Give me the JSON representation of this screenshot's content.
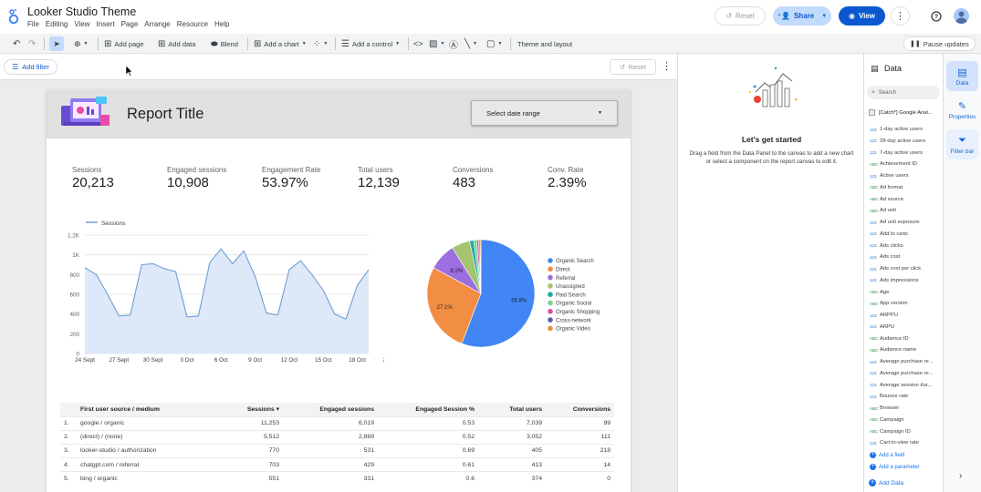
{
  "app": {
    "title": "Looker Studio Theme",
    "menu": [
      "File",
      "Editing",
      "View",
      "Insert",
      "Page",
      "Arrange",
      "Resource",
      "Help"
    ],
    "reset_label": "Reset",
    "share_label": "Share",
    "view_label": "View"
  },
  "toolbar": {
    "add_page": "Add page",
    "add_data": "Add data",
    "blend": "Blend",
    "add_chart": "Add a chart",
    "add_control": "Add a control",
    "theme_layout": "Theme and layout",
    "pause_updates": "Pause updates"
  },
  "filterbar": {
    "add_filter": "Add filter",
    "reset_label": "Reset"
  },
  "report": {
    "title": "Report Title",
    "date_range": "Select date range",
    "kpis": [
      {
        "label": "Sessions",
        "value": "20,213"
      },
      {
        "label": "Engaged sessions",
        "value": "10,908"
      },
      {
        "label": "Engagement Rate",
        "value": "53.97%"
      },
      {
        "label": "Total users",
        "value": "12,139"
      },
      {
        "label": "Conversions",
        "value": "483"
      },
      {
        "label": "Conv. Rate",
        "value": "2.39%"
      }
    ],
    "table": {
      "headers": [
        "First user source / medium",
        "Sessions ▾",
        "Engaged sessions",
        "Engaged Session %",
        "Total users",
        "Conversions"
      ],
      "rows": [
        [
          "1.",
          "google / organic",
          "11,253",
          "6,019",
          "0.53",
          "7,039",
          "99"
        ],
        [
          "2.",
          "(direct) / (none)",
          "5,512",
          "2,869",
          "0.52",
          "3,052",
          "111"
        ],
        [
          "3.",
          "looker-studio / authorization",
          "770",
          "531",
          "0.69",
          "405",
          "218"
        ],
        [
          "4.",
          "chatgpt.com / referral",
          "703",
          "429",
          "0.61",
          "413",
          "14"
        ],
        [
          "5.",
          "bing / organic",
          "551",
          "331",
          "0.6",
          "374",
          "0"
        ]
      ]
    }
  },
  "chart_data": [
    {
      "type": "area",
      "series": [
        {
          "name": "Sessions",
          "values": [
            870,
            800,
            600,
            380,
            390,
            900,
            910,
            860,
            830,
            370,
            380,
            920,
            1060,
            910,
            1040,
            780,
            410,
            390,
            850,
            940,
            800,
            640,
            400,
            350,
            690,
            850
          ]
        }
      ],
      "x": [
        "24 Sept",
        "25 Sept",
        "26 Sept",
        "27 Sept",
        "28 Sept",
        "29 Sept",
        "30 Sept",
        "1 Oct",
        "2 Oct",
        "3 Oct",
        "4 Oct",
        "5 Oct",
        "6 Oct",
        "7 Oct",
        "8 Oct",
        "9 Oct",
        "10 Oct",
        "11 Oct",
        "12 Oct",
        "13 Oct",
        "14 Oct",
        "15 Oct",
        "16 Oct",
        "17 Oct",
        "18 Oct",
        "19 Oct"
      ],
      "xticks": [
        "24 Sept",
        "27 Sept",
        "30 Sept",
        "3 Oct",
        "6 Oct",
        "9 Oct",
        "12 Oct",
        "15 Oct",
        "18 Oct",
        "21 Oct"
      ],
      "yticks": [
        "0",
        "200",
        "400",
        "600",
        "800",
        "1K",
        "1.2K"
      ],
      "ylim": [
        0,
        1200
      ],
      "legend_placement": "top-left",
      "grid": true
    },
    {
      "type": "pie",
      "slices": [
        {
          "name": "Organic Search",
          "value": 55.8,
          "label": "55.8%",
          "color": "#4285f4"
        },
        {
          "name": "Direct",
          "value": 27.1,
          "label": "27.1%",
          "color": "#f28e43"
        },
        {
          "name": "Referral",
          "value": 8.2,
          "label": "8.2%",
          "color": "#9c6ee0"
        },
        {
          "name": "Unassigned",
          "value": 5.5,
          "label": "",
          "color": "#a6c36f"
        },
        {
          "name": "Paid Search",
          "value": 1.2,
          "label": "",
          "color": "#1ba9a8"
        },
        {
          "name": "Organic Social",
          "value": 0.9,
          "label": "",
          "color": "#7cd48c"
        },
        {
          "name": "Organic Shopping",
          "value": 0.6,
          "label": "",
          "color": "#d84fa5"
        },
        {
          "name": "Cross-network",
          "value": 0.4,
          "label": "",
          "color": "#5b5ea6"
        },
        {
          "name": "Organic Video",
          "value": 0.3,
          "label": "",
          "color": "#e8903a"
        }
      ],
      "legend_placement": "right"
    }
  ],
  "get_started": {
    "title": "Let's get started",
    "text": "Drag a field from the Data Panel to the canvas to add a new chart or select a component on the report canvas to edit it."
  },
  "data_panel": {
    "title": "Data",
    "search_placeholder": "Search",
    "source": "[Catch*] Google Anal...",
    "fields": [
      {
        "type": "123",
        "name": "1-day active users"
      },
      {
        "type": "123",
        "name": "28-day active users"
      },
      {
        "type": "123",
        "name": "7-day active users"
      },
      {
        "type": "ABC",
        "name": "Achievement ID"
      },
      {
        "type": "123",
        "name": "Active users"
      },
      {
        "type": "ABC",
        "name": "Ad format"
      },
      {
        "type": "ABC",
        "name": "Ad source"
      },
      {
        "type": "ABC",
        "name": "Ad unit"
      },
      {
        "type": "123",
        "name": "Ad unit exposure"
      },
      {
        "type": "123",
        "name": "Add to carts"
      },
      {
        "type": "123",
        "name": "Ads clicks"
      },
      {
        "type": "123",
        "name": "Ads cost"
      },
      {
        "type": "123",
        "name": "Ads cost per click"
      },
      {
        "type": "123",
        "name": "Ads impressions"
      },
      {
        "type": "ABC",
        "name": "Age"
      },
      {
        "type": "ABC",
        "name": "App version"
      },
      {
        "type": "123",
        "name": "ARPPU"
      },
      {
        "type": "123",
        "name": "ARPU"
      },
      {
        "type": "ABC",
        "name": "Audience ID"
      },
      {
        "type": "ABC",
        "name": "Audience name"
      },
      {
        "type": "123",
        "name": "Average purchase re..."
      },
      {
        "type": "123",
        "name": "Average purchase re..."
      },
      {
        "type": "123",
        "name": "Average session dur..."
      },
      {
        "type": "123",
        "name": "Bounce rate"
      },
      {
        "type": "ABC",
        "name": "Browser"
      },
      {
        "type": "ABC",
        "name": "Campaign"
      },
      {
        "type": "ABC",
        "name": "Campaign ID"
      },
      {
        "type": "123",
        "name": "Cart-to-view rate"
      }
    ],
    "add_field": "Add a field",
    "add_parameter": "Add a parameter",
    "add_data": "Add Data"
  },
  "side_tabs": [
    "Data",
    "Properties",
    "Filter bar"
  ]
}
